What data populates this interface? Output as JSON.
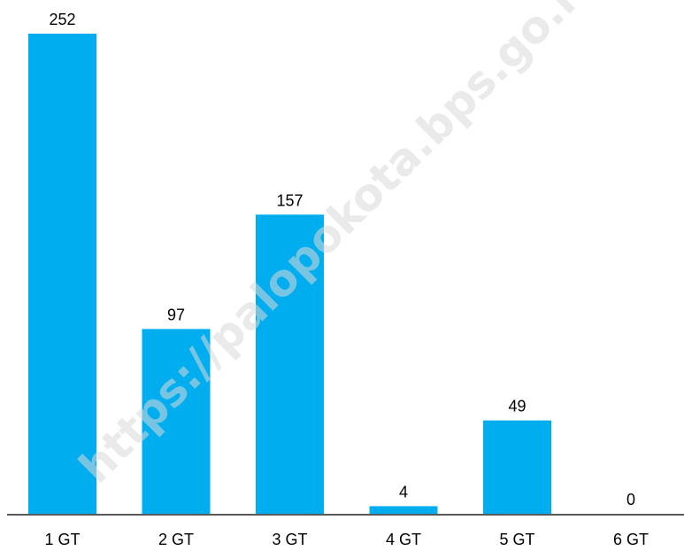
{
  "chart_data": {
    "type": "bar",
    "categories": [
      "1 GT",
      "2 GT",
      "3 GT",
      "4 GT",
      "5 GT",
      "6 GT"
    ],
    "values": [
      252,
      97,
      157,
      4,
      49,
      0
    ],
    "title": "",
    "xlabel": "",
    "ylabel": "",
    "ylim": [
      0,
      252
    ],
    "grid": false,
    "data_labels": true,
    "bar_color": "#00AEEF",
    "axis_color": "#595959"
  },
  "watermark": {
    "text": "https://palopokota.bps.go.id"
  }
}
